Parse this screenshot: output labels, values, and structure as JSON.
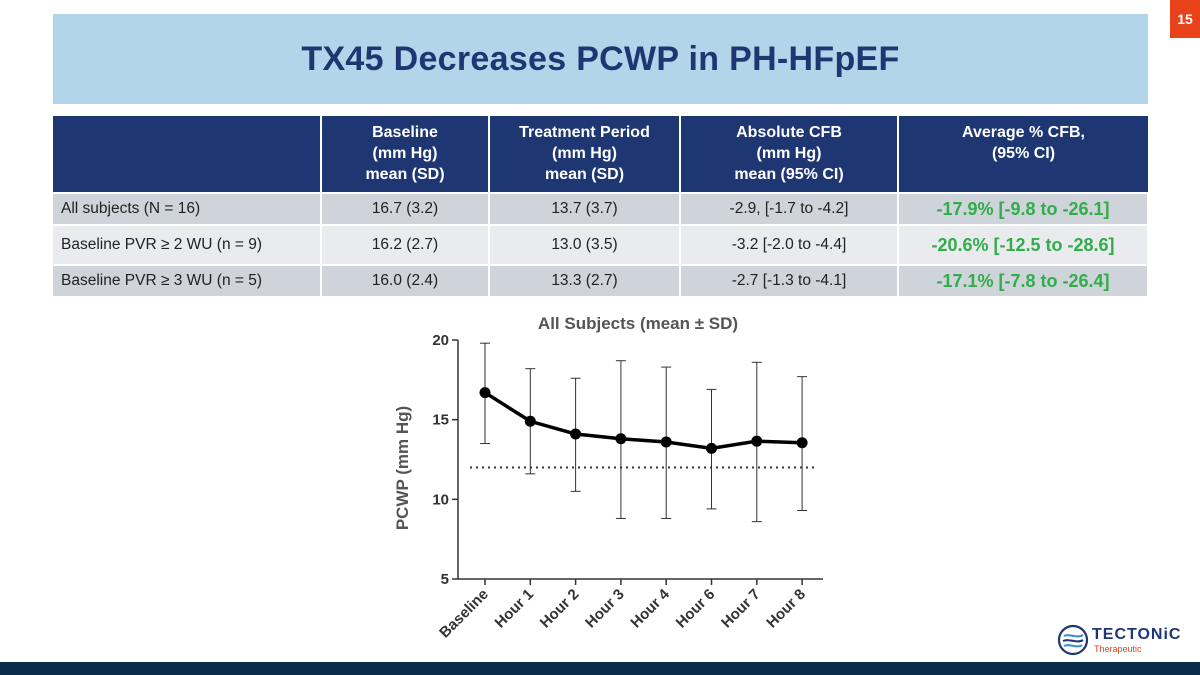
{
  "page": {
    "number": "15",
    "title": "TX45 Decreases PCWP in PH-HFpEF"
  },
  "table": {
    "headers": [
      {
        "l1": "",
        "l2": "",
        "l3": ""
      },
      {
        "l1": "Baseline",
        "l2": "(mm Hg)",
        "l3": "mean (SD)"
      },
      {
        "l1": "Treatment Period",
        "l2": "(mm Hg)",
        "l3": "mean (SD)"
      },
      {
        "l1": "Absolute CFB",
        "l2": "(mm Hg)",
        "l3": "mean (95% CI)"
      },
      {
        "l1": "Average % CFB,",
        "l2": "(95% CI)",
        "l3": ""
      }
    ],
    "rows": [
      {
        "label": "All subjects (N = 16)",
        "baseline": "16.7 (3.2)",
        "treatment": "13.7 (3.7)",
        "abs_cfb": "-2.9, [-1.7 to -4.2]",
        "pct_cfb": "-17.9% [-9.8 to -26.1]"
      },
      {
        "label": "Baseline PVR ≥ 2 WU (n = 9)",
        "baseline": "16.2 (2.7)",
        "treatment": "13.0 (3.5)",
        "abs_cfb": "-3.2 [-2.0 to -4.4]",
        "pct_cfb": "-20.6% [-12.5 to -28.6]"
      },
      {
        "label": "Baseline PVR ≥ 3 WU (n = 5)",
        "baseline": "16.0 (2.4)",
        "treatment": "13.3 (2.7)",
        "abs_cfb": "-2.7 [-1.3 to -4.1]",
        "pct_cfb": "-17.1% [-7.8 to -26.4]"
      }
    ]
  },
  "chart_data": {
    "type": "line",
    "title": "All Subjects (mean ± SD)",
    "xlabel": "",
    "ylabel": "PCWP (mm Hg)",
    "categories": [
      "Baseline",
      "Hour 1",
      "Hour 2",
      "Hour 3",
      "Hour 4",
      "Hour 6",
      "Hour 7",
      "Hour 8"
    ],
    "series": [
      {
        "name": "All Subjects",
        "values": [
          16.7,
          14.9,
          14.1,
          13.8,
          13.6,
          13.2,
          13.65,
          13.55
        ],
        "sd_upper": [
          19.8,
          18.2,
          17.6,
          18.7,
          18.3,
          16.9,
          18.6,
          17.7
        ],
        "sd_lower": [
          13.5,
          11.6,
          10.5,
          8.8,
          8.8,
          9.4,
          8.6,
          9.3
        ]
      }
    ],
    "reference_line": 12,
    "ylim": [
      5,
      20
    ],
    "yticks": [
      "5",
      "10",
      "15",
      "20"
    ]
  },
  "logo": {
    "name": "TECTONiC",
    "sub": "Therapeutic"
  },
  "colors": {
    "navy": "#1e3773",
    "accent": "#e8421a",
    "green": "#2fae49",
    "band": "#b3d5ea"
  }
}
